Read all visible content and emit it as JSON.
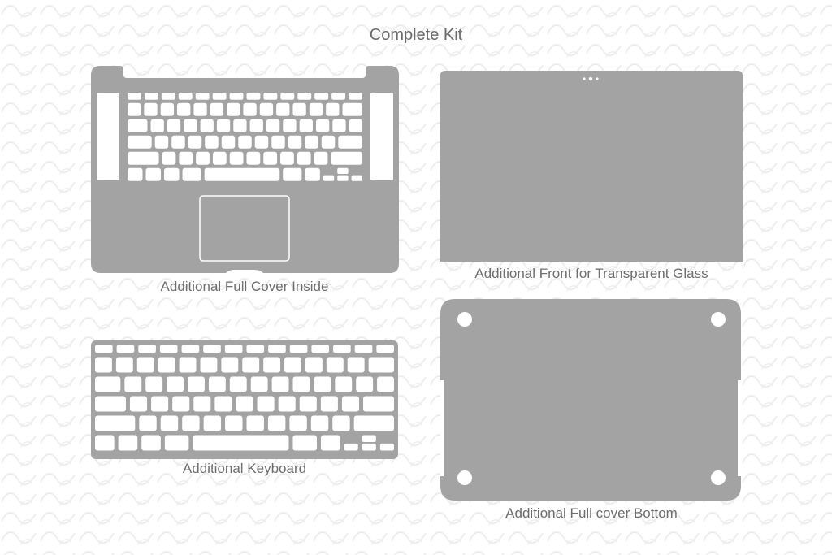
{
  "title": "Complete Kit",
  "colors": {
    "background": "#ffffff",
    "skin": "#a3a3a3",
    "pattern": "#ededed",
    "cutout": "#ffffff",
    "label": "#6d6d6d"
  },
  "panels": {
    "inside": {
      "label": "Additional Full Cover Inside"
    },
    "front": {
      "label": "Additional Front for Transparent Glass"
    },
    "keyboard": {
      "label": "Additional Keyboard"
    },
    "bottom": {
      "label": "Additional Full cover Bottom"
    }
  }
}
